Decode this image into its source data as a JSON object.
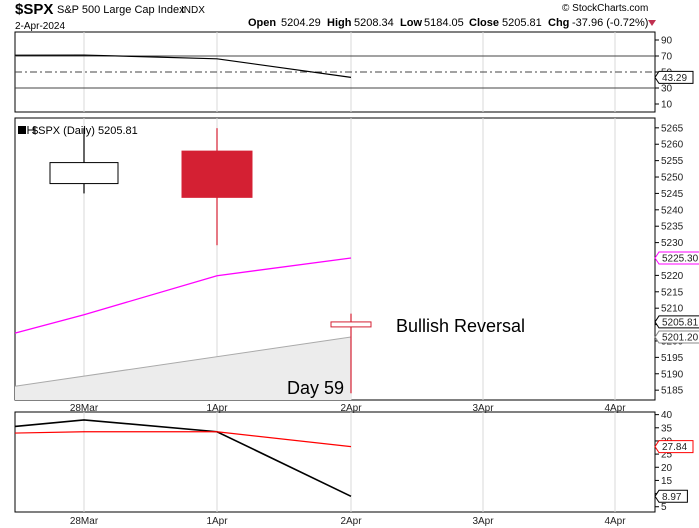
{
  "header": {
    "symbol": "$SPX",
    "name": "S&P 500 Large Cap Index",
    "exchange": "INDX",
    "date": "2-Apr-2024",
    "open_label": "Open",
    "open": "5204.29",
    "high_label": "High",
    "high": "5208.34",
    "low_label": "Low",
    "low": "5184.05",
    "close_label": "Close",
    "close": "5205.81",
    "chg_label": "Chg",
    "chg": "-37.96 (-0.72%)",
    "watermark": "© StockCharts.com"
  },
  "chart_data": [
    {
      "type": "line",
      "panel": "top-indicator",
      "ylim": [
        0,
        100
      ],
      "yticks": [
        10,
        30,
        50,
        70,
        90
      ],
      "reference_lines": [
        30,
        50,
        70
      ],
      "dashed_line": 50,
      "series": [
        {
          "color": "#000000",
          "points": [
            [
              "27Mar",
              71
            ],
            [
              "28Mar",
              71.2
            ],
            [
              "1Apr",
              66.5
            ],
            [
              "2Apr",
              43.29
            ]
          ]
        }
      ],
      "last_value_label": "43.29"
    },
    {
      "type": "candlestick",
      "panel": "price",
      "legend_label": "$SPX (Daily) 5205.81",
      "ylim": [
        5182,
        5268
      ],
      "yticks": [
        5185,
        5190,
        5195,
        5200,
        5205,
        5210,
        5215,
        5220,
        5225,
        5230,
        5235,
        5240,
        5245,
        5250,
        5255,
        5260,
        5265
      ],
      "candles": [
        {
          "x": "28Mar",
          "open": 5248.0,
          "high": 5264.9,
          "low": 5245.0,
          "close": 5254.4,
          "color": "#ffffff"
        },
        {
          "x": "1Apr",
          "open": 5257.9,
          "high": 5264.9,
          "low": 5229.2,
          "close": 5243.8,
          "color": "#d42033"
        },
        {
          "x": "2Apr",
          "open": 5204.29,
          "high": 5208.34,
          "low": 5184.05,
          "close": 5205.81,
          "color": "#ffffff",
          "edge": "#d42033"
        }
      ],
      "overlays": [
        {
          "color": "#ff00ff",
          "points": [
            [
              "27Mar",
              5202.4
            ],
            [
              "28Mar",
              5208.0
            ],
            [
              "1Apr",
              5219.9
            ],
            [
              "2Apr",
              5225.3
            ]
          ],
          "last_value_label": "5225.30"
        },
        {
          "color": "#aaaaaa",
          "fill": "#ececec",
          "points": [
            [
              "27Mar",
              5186.2
            ],
            [
              "2Apr",
              5201.2
            ]
          ],
          "last_value_label": "5201.20"
        }
      ],
      "close_label": "5205.81",
      "annotations": [
        {
          "text": "Bullish Reversal",
          "x": "2Apr",
          "y": 5206.5,
          "color": "#3333cc"
        },
        {
          "text": "Day 59",
          "x": "2Apr",
          "y": 5188,
          "color": "#3333cc"
        }
      ],
      "xticks": [
        "28Mar",
        "1Apr",
        "2Apr",
        "3Apr",
        "4Apr"
      ]
    },
    {
      "type": "line",
      "panel": "bottom-indicator",
      "ylim": [
        3,
        41
      ],
      "yticks": [
        5,
        10,
        15,
        20,
        25,
        30,
        35,
        40
      ],
      "series": [
        {
          "color": "#000000",
          "points": [
            [
              "27Mar",
              35.5
            ],
            [
              "28Mar",
              38.0
            ],
            [
              "1Apr",
              33.5
            ],
            [
              "2Apr",
              8.97
            ]
          ],
          "last_value_label": "8.97"
        },
        {
          "color": "#ff0000",
          "points": [
            [
              "27Mar",
              33.0
            ],
            [
              "28Mar",
              33.5
            ],
            [
              "1Apr",
              33.5
            ],
            [
              "2Apr",
              27.84
            ]
          ],
          "last_value_label": "27.84"
        }
      ],
      "xticks": [
        "28Mar",
        "1Apr",
        "2Apr",
        "3Apr",
        "4Apr"
      ]
    }
  ]
}
